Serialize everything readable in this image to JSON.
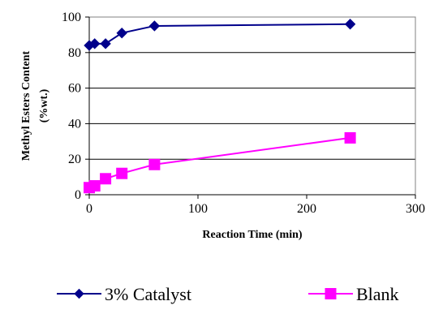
{
  "chart_data": {
    "type": "line",
    "title": "",
    "xlabel": "Reaction Time (min)",
    "ylabel_line1": "Methyl Esters Content",
    "ylabel_line2": "(%wt.)",
    "xlim": [
      0,
      300
    ],
    "ylim": [
      0,
      100
    ],
    "xticks": [
      0,
      100,
      200,
      300
    ],
    "yticks": [
      0,
      20,
      40,
      60,
      80,
      100
    ],
    "grid": "horizontal",
    "legend_position": "bottom",
    "series": [
      {
        "name": "3% Catalyst",
        "color": "#00008B",
        "marker": "diamond",
        "x": [
          0,
          5,
          15,
          30,
          60,
          240
        ],
        "y": [
          84,
          85,
          85,
          91,
          95,
          96
        ]
      },
      {
        "name": "Blank",
        "color": "#FF00FF",
        "marker": "square",
        "x": [
          0,
          5,
          15,
          30,
          60,
          240
        ],
        "y": [
          4,
          5,
          9,
          12,
          17,
          32
        ]
      }
    ]
  }
}
